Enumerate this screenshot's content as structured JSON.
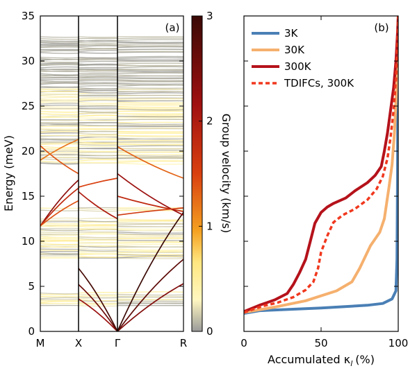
{
  "chart_data": [
    {
      "type": "heatmap",
      "panel_label": "(a)",
      "ylabel": "Energy (meV)",
      "ylim": [
        0,
        35
      ],
      "yticks": [
        0,
        5,
        10,
        15,
        20,
        25,
        30,
        35
      ],
      "xticks": [
        "M",
        "X",
        "Γ",
        "R"
      ],
      "colorbar": {
        "label": "Group velocity (km/s)",
        "ticks": [
          "0",
          "1",
          "2",
          "3"
        ],
        "range": [
          0,
          3
        ],
        "colors": [
          "#9a9a9a",
          "#fff7c0",
          "#ffe680",
          "#f4a020",
          "#d94010",
          "#a01010",
          "#3a0a05"
        ]
      },
      "highlighted_branches": [
        {
          "from": [
            "Γ",
            0
          ],
          "to": [
            "X",
            3.6
          ],
          "v": 2.2
        },
        {
          "from": [
            "Γ",
            0
          ],
          "to": [
            "X",
            5.2
          ],
          "v": 2.6
        },
        {
          "from": [
            "Γ",
            0
          ],
          "to": [
            "X",
            7.0
          ],
          "v": 2.9
        },
        {
          "from": [
            "Γ",
            0
          ],
          "to": [
            "R",
            5.3
          ],
          "v": 2.4
        },
        {
          "from": [
            "Γ",
            0
          ],
          "to": [
            "R",
            8.0
          ],
          "v": 2.7
        },
        {
          "from": [
            "Γ",
            0
          ],
          "to": [
            "R",
            13.2
          ],
          "v": 3.0
        },
        {
          "from": [
            "M",
            11.7
          ],
          "to": [
            "X",
            16.8
          ],
          "v": 2.3
        },
        {
          "from": [
            "M",
            11.7
          ],
          "to": [
            "X",
            15.9
          ],
          "v": 1.8
        },
        {
          "from": [
            "M",
            11.7
          ],
          "to": [
            "X",
            14.5
          ],
          "v": 1.4
        },
        {
          "from": [
            "X",
            15.5
          ],
          "to": [
            "Γ",
            12.5
          ],
          "v": 2.0
        },
        {
          "from": [
            "X",
            16.0
          ],
          "to": [
            "Γ",
            17.0
          ],
          "v": 1.5
        },
        {
          "from": [
            "Γ",
            15.0
          ],
          "to": [
            "R",
            13.3
          ],
          "v": 1.8
        },
        {
          "from": [
            "Γ",
            17.5
          ],
          "to": [
            "R",
            12.9
          ],
          "v": 2.2
        },
        {
          "from": [
            "Γ",
            12.9
          ],
          "to": [
            "R",
            13.7
          ],
          "v": 1.6
        },
        {
          "from": [
            "Γ",
            20.5
          ],
          "to": [
            "R",
            17.0
          ],
          "v": 1.3
        },
        {
          "from": [
            "M",
            20.6
          ],
          "to": [
            "X",
            17.5
          ],
          "v": 1.4
        },
        {
          "from": [
            "M",
            19.0
          ],
          "to": [
            "X",
            21.3
          ],
          "v": 1.2
        }
      ],
      "flat_band_ranges_meV": [
        [
          2.8,
          4.3
        ],
        [
          8.0,
          12.5
        ],
        [
          13.4,
          13.8
        ],
        [
          18.6,
          27.0
        ],
        [
          27.0,
          30.5
        ],
        [
          30.8,
          32.7
        ]
      ]
    },
    {
      "type": "line",
      "panel_label": "(b)",
      "xlabel": "Accumulated κ",
      "xlabel_subscript": "l",
      "xlabel_unit": "(%)",
      "xlim": [
        0,
        100
      ],
      "xticks": [
        0,
        50,
        100
      ],
      "ylim": [
        0,
        35
      ],
      "legend_position": "top-left",
      "series": [
        {
          "name": "3K",
          "color": "#4a7fb5",
          "dashed": false,
          "points": [
            [
              0,
              2.0
            ],
            [
              10,
              2.3
            ],
            [
              50,
              2.6
            ],
            [
              80,
              2.9
            ],
            [
              90,
              3.1
            ],
            [
              96,
              3.6
            ],
            [
              98.5,
              4.5
            ],
            [
              99.2,
              8
            ],
            [
              99.5,
              16
            ],
            [
              99.7,
              25
            ],
            [
              100,
              35
            ]
          ]
        },
        {
          "name": "30K",
          "color": "#f5b06e",
          "dashed": false,
          "points": [
            [
              0,
              2.1
            ],
            [
              20,
              2.7
            ],
            [
              40,
              3.4
            ],
            [
              60,
              4.5
            ],
            [
              70,
              5.5
            ],
            [
              75,
              7.0
            ],
            [
              82,
              9.5
            ],
            [
              88,
              11.0
            ],
            [
              91,
              12.5
            ],
            [
              94,
              16.0
            ],
            [
              96,
              18.5
            ],
            [
              97.5,
              22
            ],
            [
              98.5,
              25.5
            ],
            [
              99.3,
              29
            ],
            [
              100,
              35
            ]
          ]
        },
        {
          "name": "300K",
          "color": "#b5121b",
          "dashed": false,
          "points": [
            [
              0,
              2.2
            ],
            [
              10,
              2.9
            ],
            [
              20,
              3.5
            ],
            [
              28,
              4.2
            ],
            [
              32,
              5.2
            ],
            [
              36,
              6.5
            ],
            [
              40,
              8.0
            ],
            [
              43,
              10.0
            ],
            [
              46,
              12.0
            ],
            [
              50,
              13.2
            ],
            [
              54,
              13.8
            ],
            [
              58,
              14.2
            ],
            [
              66,
              14.8
            ],
            [
              72,
              15.6
            ],
            [
              80,
              16.5
            ],
            [
              85,
              17.3
            ],
            [
              89,
              18.3
            ],
            [
              91,
              20.0
            ],
            [
              93,
              22.0
            ],
            [
              95,
              24.5
            ],
            [
              97,
              27.0
            ],
            [
              98.5,
              30.0
            ],
            [
              99.5,
              33.0
            ],
            [
              100,
              35
            ]
          ]
        },
        {
          "name": "TDIFCs, 300K",
          "color": "#f0381e",
          "dashed": true,
          "points": [
            [
              0,
              2.1
            ],
            [
              12,
              2.8
            ],
            [
              22,
              3.2
            ],
            [
              32,
              3.8
            ],
            [
              40,
              4.6
            ],
            [
              45,
              5.5
            ],
            [
              48,
              7.0
            ],
            [
              50,
              8.8
            ],
            [
              54,
              10.6
            ],
            [
              58,
              12.1
            ],
            [
              64,
              12.9
            ],
            [
              72,
              13.6
            ],
            [
              80,
              14.6
            ],
            [
              86,
              15.8
            ],
            [
              90,
              17.2
            ],
            [
              93,
              19.2
            ],
            [
              95,
              21.5
            ],
            [
              97,
              24.5
            ],
            [
              98.5,
              28.0
            ],
            [
              99.5,
              32.0
            ],
            [
              100,
              35
            ]
          ]
        }
      ]
    }
  ]
}
